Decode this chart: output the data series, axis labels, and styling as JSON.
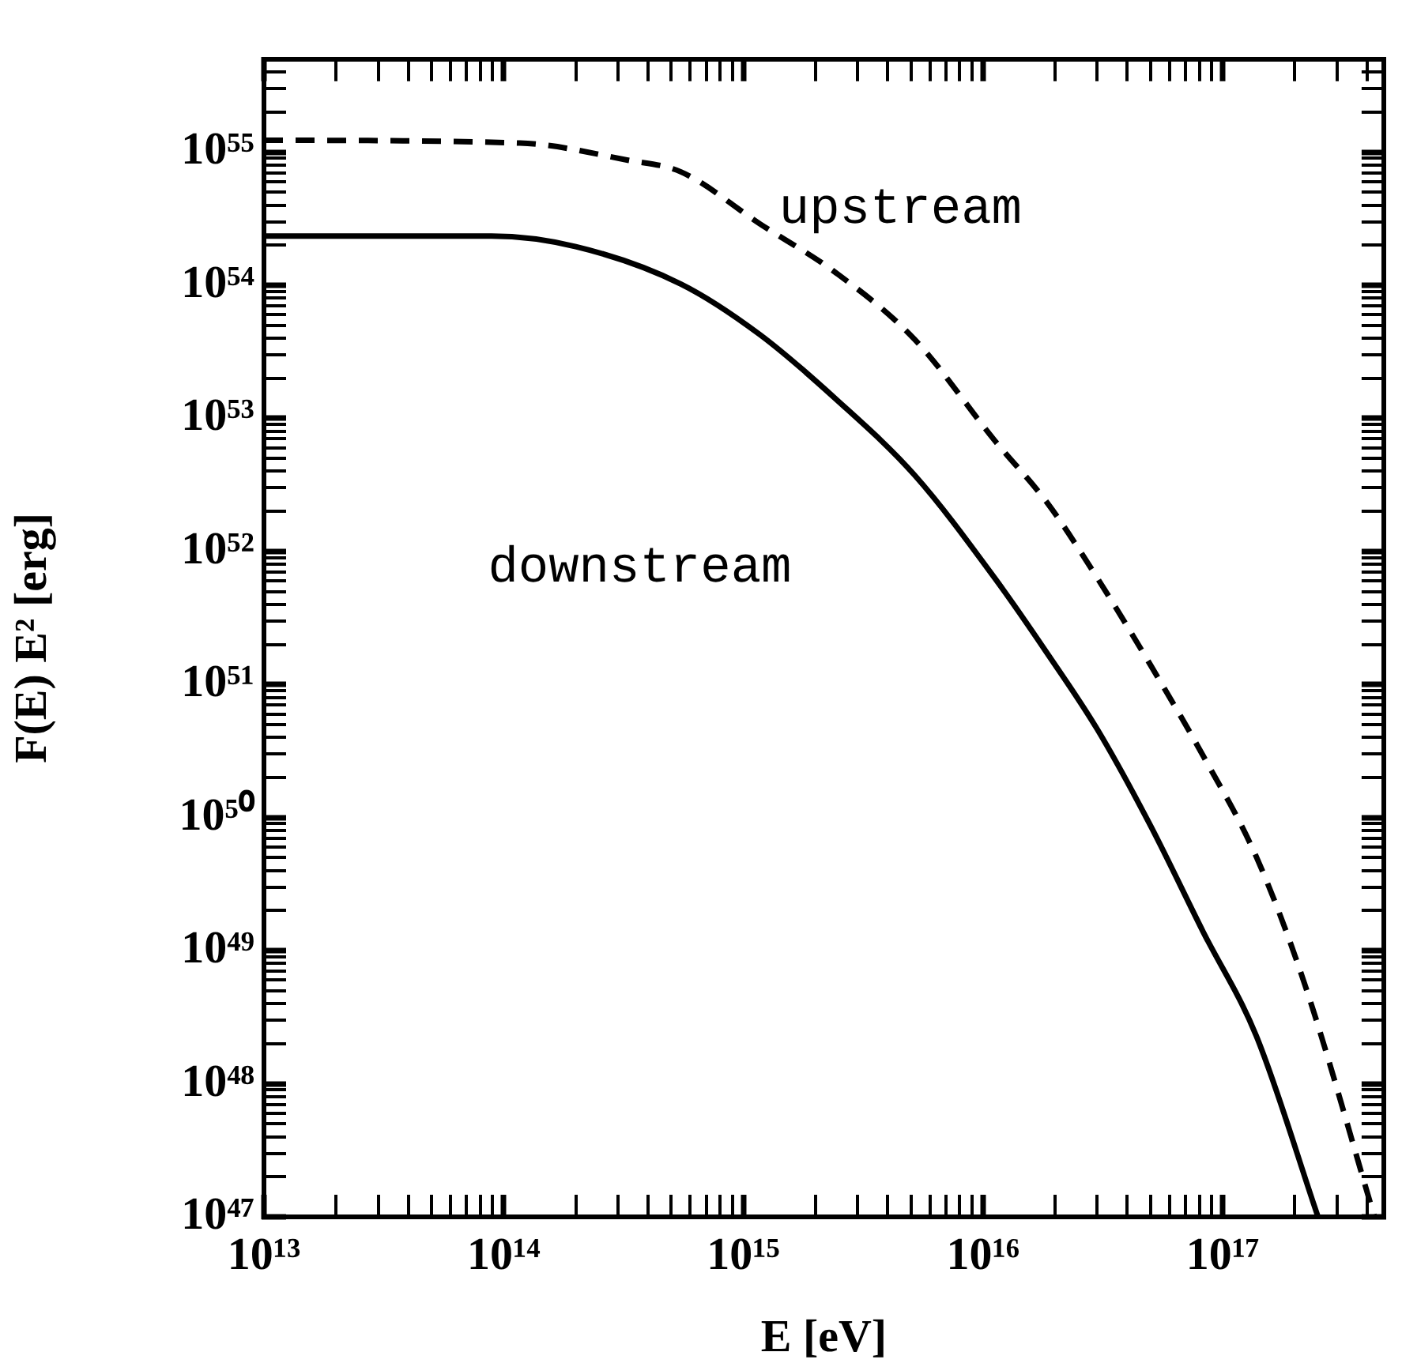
{
  "chart_data": {
    "type": "line",
    "xlabel": "E [eV]",
    "ylabel": "F(E) E² [erg]",
    "log": "xy",
    "grid": false,
    "legend": false,
    "marker": "none",
    "xlim": [
      10000000000000.0,
      4.7e+17
    ],
    "ylim": [
      1e+47,
      5e+55
    ],
    "xticks": [
      {
        "value": 10000000000000.0,
        "label": "10¹³"
      },
      {
        "value": 20000000000000.0,
        "label": null
      },
      {
        "value": 30000000000000.0,
        "label": null
      },
      {
        "value": 40000000000000.0,
        "label": null
      },
      {
        "value": 50000000000000.0,
        "label": null
      },
      {
        "value": 60000000000000.0,
        "label": null
      },
      {
        "value": 70000000000000.0,
        "label": null
      },
      {
        "value": 80000000000000.0,
        "label": null
      },
      {
        "value": 90000000000000.0,
        "label": null
      },
      {
        "value": 100000000000000.0,
        "label": "10¹⁴"
      },
      {
        "value": 200000000000000.0,
        "label": null
      },
      {
        "value": 300000000000000.0,
        "label": null
      },
      {
        "value": 400000000000000.0,
        "label": null
      },
      {
        "value": 500000000000000.0,
        "label": null
      },
      {
        "value": 600000000000000.0,
        "label": null
      },
      {
        "value": 700000000000000.0,
        "label": null
      },
      {
        "value": 800000000000000.0,
        "label": null
      },
      {
        "value": 900000000000000.0,
        "label": null
      },
      {
        "value": 1000000000000000.0,
        "label": "10¹⁵"
      },
      {
        "value": 2000000000000000.0,
        "label": null
      },
      {
        "value": 3000000000000000.0,
        "label": null
      },
      {
        "value": 4000000000000000.0,
        "label": null
      },
      {
        "value": 5000000000000000.0,
        "label": null
      },
      {
        "value": 6000000000000000.0,
        "label": null
      },
      {
        "value": 7000000000000000.0,
        "label": null
      },
      {
        "value": 8000000000000000.0,
        "label": null
      },
      {
        "value": 9000000000000000.0,
        "label": null
      },
      {
        "value": 1e+16,
        "label": "10¹⁶"
      },
      {
        "value": 2e+16,
        "label": null
      },
      {
        "value": 3e+16,
        "label": null
      },
      {
        "value": 4e+16,
        "label": null
      },
      {
        "value": 5e+16,
        "label": null
      },
      {
        "value": 6e+16,
        "label": null
      },
      {
        "value": 7e+16,
        "label": null
      },
      {
        "value": 8e+16,
        "label": null
      },
      {
        "value": 9e+16,
        "label": null
      },
      {
        "value": 1e+17,
        "label": "10¹⁷"
      },
      {
        "value": 2e+17,
        "label": null
      },
      {
        "value": 3e+17,
        "label": null
      },
      {
        "value": 4e+17,
        "label": null
      }
    ],
    "yticks": [
      {
        "value": 1e+47,
        "label": "10⁴⁷"
      },
      {
        "value": 2e+47,
        "label": null
      },
      {
        "value": 3e+47,
        "label": null
      },
      {
        "value": 4e+47,
        "label": null
      },
      {
        "value": 5e+47,
        "label": null
      },
      {
        "value": 6e+47,
        "label": null
      },
      {
        "value": 7e+47,
        "label": null
      },
      {
        "value": 8e+47,
        "label": null
      },
      {
        "value": 9e+47,
        "label": null
      },
      {
        "value": 1e+48,
        "label": "10⁴⁸"
      },
      {
        "value": 2e+48,
        "label": null
      },
      {
        "value": 3e+48,
        "label": null
      },
      {
        "value": 4e+48,
        "label": null
      },
      {
        "value": 5e+48,
        "label": null
      },
      {
        "value": 6e+48,
        "label": null
      },
      {
        "value": 7e+48,
        "label": null
      },
      {
        "value": 8e+48,
        "label": null
      },
      {
        "value": 9e+48,
        "label": null
      },
      {
        "value": 1e+49,
        "label": "10⁴⁹"
      },
      {
        "value": 2e+49,
        "label": null
      },
      {
        "value": 3e+49,
        "label": null
      },
      {
        "value": 4e+49,
        "label": null
      },
      {
        "value": 5e+49,
        "label": null
      },
      {
        "value": 6e+49,
        "label": null
      },
      {
        "value": 7e+49,
        "label": null
      },
      {
        "value": 8e+49,
        "label": null
      },
      {
        "value": 9e+49,
        "label": null
      },
      {
        "value": 1e+50,
        "label": "10⁵⁰"
      },
      {
        "value": 2e+50,
        "label": null
      },
      {
        "value": 3e+50,
        "label": null
      },
      {
        "value": 4e+50,
        "label": null
      },
      {
        "value": 5e+50,
        "label": null
      },
      {
        "value": 6e+50,
        "label": null
      },
      {
        "value": 7e+50,
        "label": null
      },
      {
        "value": 8e+50,
        "label": null
      },
      {
        "value": 9e+50,
        "label": null
      },
      {
        "value": 1e+51,
        "label": "10⁵¹"
      },
      {
        "value": 2e+51,
        "label": null
      },
      {
        "value": 3e+51,
        "label": null
      },
      {
        "value": 4e+51,
        "label": null
      },
      {
        "value": 5e+51,
        "label": null
      },
      {
        "value": 6e+51,
        "label": null
      },
      {
        "value": 7e+51,
        "label": null
      },
      {
        "value": 8e+51,
        "label": null
      },
      {
        "value": 9e+51,
        "label": null
      },
      {
        "value": 1e+52,
        "label": "10⁵²"
      },
      {
        "value": 2e+52,
        "label": null
      },
      {
        "value": 3e+52,
        "label": null
      },
      {
        "value": 4e+52,
        "label": null
      },
      {
        "value": 5e+52,
        "label": null
      },
      {
        "value": 6e+52,
        "label": null
      },
      {
        "value": 7e+52,
        "label": null
      },
      {
        "value": 8e+52,
        "label": null
      },
      {
        "value": 9e+52,
        "label": null
      },
      {
        "value": 1e+53,
        "label": "10⁵³"
      },
      {
        "value": 2e+53,
        "label": null
      },
      {
        "value": 3e+53,
        "label": null
      },
      {
        "value": 4e+53,
        "label": null
      },
      {
        "value": 5e+53,
        "label": null
      },
      {
        "value": 6e+53,
        "label": null
      },
      {
        "value": 7e+53,
        "label": null
      },
      {
        "value": 8e+53,
        "label": null
      },
      {
        "value": 9e+53,
        "label": null
      },
      {
        "value": 1e+54,
        "label": "10⁵⁴"
      },
      {
        "value": 2e+54,
        "label": null
      },
      {
        "value": 3e+54,
        "label": null
      },
      {
        "value": 4e+54,
        "label": null
      },
      {
        "value": 5e+54,
        "label": null
      },
      {
        "value": 6e+54,
        "label": null
      },
      {
        "value": 7e+54,
        "label": null
      },
      {
        "value": 8e+54,
        "label": null
      },
      {
        "value": 9e+54,
        "label": null
      },
      {
        "value": 1e+55,
        "label": "10⁵⁵"
      },
      {
        "value": 2e+55,
        "label": null
      },
      {
        "value": 3e+55,
        "label": null
      },
      {
        "value": 4e+55,
        "label": null
      }
    ],
    "series": [
      {
        "name": "upstream",
        "color": "#000000",
        "line_style": "dashed",
        "x": [
          10000000000000.0,
          117000000000000.0,
          330000000000000.0,
          550000000000000.0,
          1170000000000000.0,
          2450000000000000.0,
          5200000000000000.0,
          1.12e+16,
          1.86e+16,
          3e+16,
          5e+16,
          8.3e+16,
          1.38e+17,
          2.2e+17,
          4.3e+17
        ],
        "values": [
          1.23e+55,
          1.17e+55,
          8.7e+54,
          7.1e+54,
          2.9e+54,
          1.23e+54,
          3.9e+53,
          6.8e+52,
          2.3e+52,
          6.3e+51,
          1.4e+51,
          2.9e+50,
          5.1e+49,
          5.6e+48,
          1e+47
        ]
      },
      {
        "name": "downstream",
        "color": "#000000",
        "line_style": "solid",
        "x": [
          10000000000000.0,
          89000000000000.0,
          200000000000000.0,
          550000000000000.0,
          1170000000000000.0,
          2450000000000000.0,
          5200000000000000.0,
          1.12e+16,
          1.86e+16,
          3e+16,
          5e+16,
          8.3e+16,
          1.38e+17,
          2.5e+17
        ],
        "values": [
          2.34e+54,
          2.34e+54,
          1.95e+54,
          1.02e+54,
          4.27e+53,
          1.38e+53,
          3.72e+52,
          6.3e+51,
          1.7e+51,
          4.6e+50,
          8.7e+49,
          1.38e+49,
          2.3e+48,
          1e+47
        ]
      }
    ]
  }
}
